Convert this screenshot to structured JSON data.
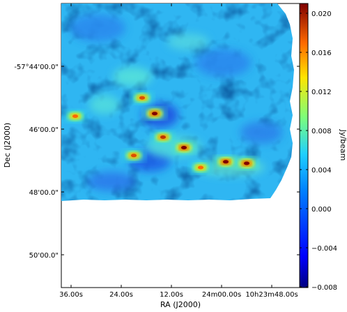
{
  "chart_data": {
    "type": "heatmap",
    "title": "",
    "xlabel": "RA (J2000)",
    "ylabel": "Dec (J2000)",
    "x_ticks": [
      "36.00s",
      "24.00s",
      "12.00s",
      "24m00.00s",
      "10h23m48.00s"
    ],
    "y_ticks": [
      "-57°44'00.0\"",
      "46'00.0\"",
      "48'00.0\"",
      "50'00.0\""
    ],
    "colorbar": {
      "label": "Jy/beam",
      "ticks": [
        "0.020",
        "0.016",
        "0.012",
        "0.008",
        "0.004",
        "0.000",
        "−0.004",
        "−0.008"
      ],
      "range": [
        -0.008,
        0.021
      ],
      "colormap": "jet"
    },
    "grid": false,
    "map_background_value": 0.0005,
    "sources": [
      {
        "ra": "10h24m16s",
        "dec": "-57°45'25\"",
        "peak": 0.021
      },
      {
        "ra": "10h24m19s",
        "dec": "-57°44'55\"",
        "peak": 0.018
      },
      {
        "ra": "10h24m14s",
        "dec": "-57°46'10\"",
        "peak": 0.019
      },
      {
        "ra": "10h24m09s",
        "dec": "-57°46'30\"",
        "peak": 0.021
      },
      {
        "ra": "10h24m21s",
        "dec": "-57°46'45\"",
        "peak": 0.018
      },
      {
        "ra": "10h23m59s",
        "dec": "-57°46'57\"",
        "peak": 0.021
      },
      {
        "ra": "10h23m54s",
        "dec": "-57°47'00\"",
        "peak": 0.021
      },
      {
        "ra": "10h24m05s",
        "dec": "-57°47'08\"",
        "peak": 0.017
      },
      {
        "ra": "10h24m35s",
        "dec": "-57°45'30\"",
        "peak": 0.017
      }
    ]
  }
}
